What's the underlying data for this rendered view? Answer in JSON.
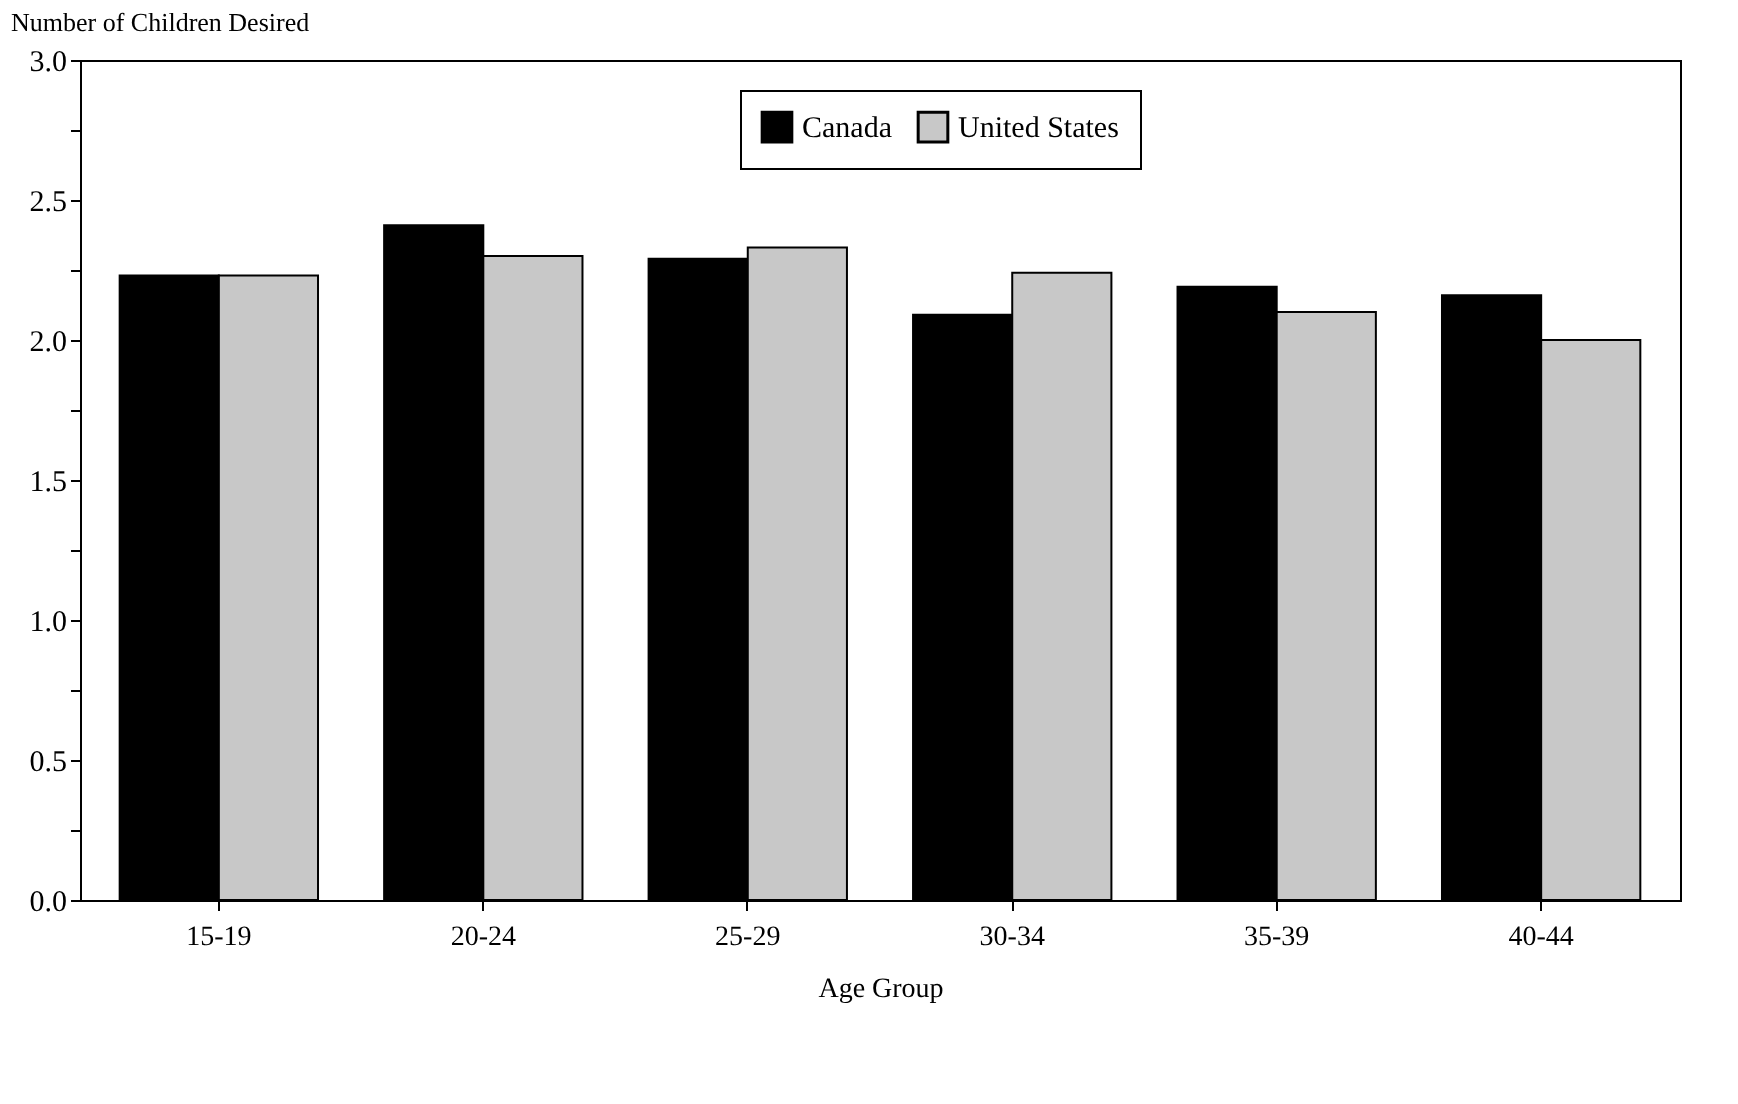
{
  "chart_data": {
    "type": "bar",
    "xlabel": "Age Group",
    "ylabel": "Number of Children Desired",
    "categories": [
      "15-19",
      "20-24",
      "25-29",
      "30-34",
      "35-39",
      "40-44"
    ],
    "series": [
      {
        "name": "Canada",
        "color": "#000000",
        "values": [
          2.23,
          2.41,
          2.29,
          2.09,
          2.19,
          2.16
        ]
      },
      {
        "name": "United States",
        "color": "#c8c8c8",
        "values": [
          2.23,
          2.3,
          2.33,
          2.24,
          2.1,
          2.0
        ]
      }
    ],
    "ylim": [
      0,
      3
    ],
    "yticks": [
      {
        "value": 0,
        "label": "0.0"
      },
      {
        "value": 0.25,
        "label": null
      },
      0.5,
      {
        "value": 0.75,
        "label": null
      },
      {
        "value": 1,
        "label": "1.0"
      },
      {
        "value": 1.25,
        "label": null
      },
      1.5,
      {
        "value": 1.75,
        "label": null
      },
      {
        "value": 2,
        "label": "2.0"
      },
      {
        "value": 2.25,
        "label": null
      },
      2.5,
      {
        "value": 2.75,
        "label": null
      },
      {
        "value": 3,
        "label": "3.0"
      }
    ],
    "grid": false,
    "legend": "top"
  }
}
